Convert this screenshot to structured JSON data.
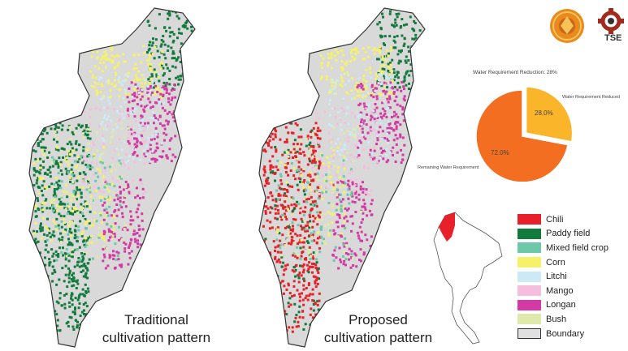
{
  "captions": {
    "traditional": [
      "Traditional",
      "cultivation pattern"
    ],
    "proposed": [
      "Proposed",
      "cultivation pattern"
    ]
  },
  "logos": {
    "org_label": "TSE"
  },
  "pie": {
    "title": "Water Requirement Reduction: 28%",
    "slices": [
      {
        "label": "Water Requirement Reduced",
        "value": 28.0,
        "pct": "28.0%",
        "color": "#fbb52a",
        "exploded": true
      },
      {
        "label": "Remaining Water Requirement",
        "value": 72.0,
        "pct": "72.0%",
        "color": "#f46e22",
        "exploded": false
      }
    ]
  },
  "legend": [
    {
      "label": "Chili",
      "color": "#e8202a"
    },
    {
      "label": "Paddy field",
      "color": "#127a3c"
    },
    {
      "label": "Mixed field crop",
      "color": "#6cc8a8"
    },
    {
      "label": "Corn",
      "color": "#f5f26a"
    },
    {
      "label": "Litchi",
      "color": "#cde9f6"
    },
    {
      "label": "Mango",
      "color": "#f5bedd"
    },
    {
      "label": "Longan",
      "color": "#d43aa3"
    },
    {
      "label": "Bush",
      "color": "#dfe9a9"
    },
    {
      "label": "Boundary",
      "color": "#e0e0e0"
    }
  ],
  "map_colors": {
    "base": "#d9d9d9",
    "outline": "#333333"
  }
}
